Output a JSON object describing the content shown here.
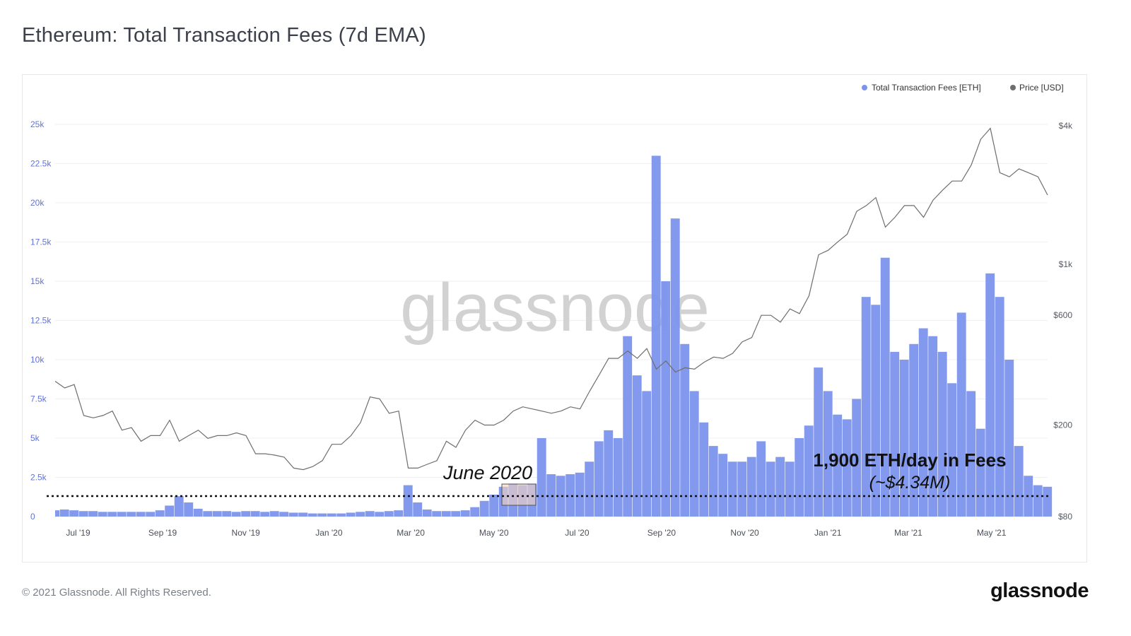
{
  "title": "Ethereum: Total Transaction Fees (7d EMA)",
  "footer": {
    "copyright": "© 2021 Glassnode. All Rights Reserved.",
    "logo": "glassnode"
  },
  "watermark": "glassnode",
  "colors": {
    "fees": "#7b93ec",
    "price": "#6e6e6e",
    "highlight": "#f9d6c2",
    "annotation": "#111111"
  },
  "chart_data": {
    "type": "bar",
    "title": "Ethereum: Total Transaction Fees (7d EMA)",
    "legend": {
      "position": "top-right",
      "entries": [
        "Total Transaction Fees [ETH]",
        "Price [USD]"
      ]
    },
    "grid": true,
    "x_start": "2019-06-24",
    "x_interval": "weekly",
    "x_ticks": [
      "Jul '19",
      "Sep '19",
      "Nov '19",
      "Jan '20",
      "Mar '20",
      "May '20",
      "Jul '20",
      "Sep '20",
      "Nov '20",
      "Jan '21",
      "Mar '21",
      "May '21"
    ],
    "y_left": {
      "ylim": [
        0,
        25000
      ],
      "scale": "linear",
      "ticks": [
        "0",
        "2.5k",
        "5k",
        "7.5k",
        "10k",
        "12.5k",
        "15k",
        "17.5k",
        "20k",
        "22.5k",
        "25k"
      ]
    },
    "y_right": {
      "ylim": [
        80,
        4000
      ],
      "scale": "log",
      "ticks": [
        {
          "label": "$80",
          "value": 80
        },
        {
          "label": "$200",
          "value": 200
        },
        {
          "label": "$600",
          "value": 600
        },
        {
          "label": "$1k",
          "value": 1000
        },
        {
          "label": "$4k",
          "value": 4000
        }
      ]
    },
    "series": [
      {
        "name": "Total Transaction Fees [ETH]",
        "type": "bar",
        "axis": "left",
        "values": [
          400,
          450,
          400,
          350,
          350,
          300,
          300,
          300,
          300,
          300,
          300,
          400,
          700,
          1300,
          900,
          500,
          350,
          350,
          350,
          300,
          350,
          350,
          300,
          350,
          300,
          250,
          250,
          200,
          200,
          200,
          200,
          250,
          300,
          350,
          300,
          350,
          400,
          2000,
          900,
          450,
          350,
          350,
          350,
          400,
          600,
          1000,
          1400,
          1900,
          2100,
          2000,
          2100,
          5000,
          2700,
          2600,
          2700,
          2800,
          3500,
          4800,
          5500,
          5000,
          11500,
          9000,
          8000,
          23000,
          15000,
          19000,
          11000,
          8000,
          6000,
          4500,
          4000,
          3500,
          3500,
          3800,
          4800,
          3500,
          3800,
          3500,
          5000,
          5800,
          9500,
          8000,
          6500,
          6200,
          7500,
          14000,
          13500,
          16500,
          10500,
          10000,
          11000,
          12000,
          11500,
          10500,
          8500,
          13000,
          8000,
          5600,
          15500,
          14000,
          10000,
          4500,
          2600,
          2000,
          1900
        ]
      },
      {
        "name": "Price [USD]",
        "type": "line",
        "axis": "right",
        "values": [
          310,
          290,
          300,
          220,
          215,
          220,
          230,
          190,
          195,
          170,
          180,
          180,
          210,
          170,
          180,
          190,
          175,
          180,
          180,
          185,
          180,
          150,
          150,
          148,
          145,
          130,
          128,
          132,
          140,
          165,
          165,
          180,
          205,
          265,
          260,
          225,
          230,
          130,
          130,
          135,
          140,
          170,
          160,
          190,
          210,
          200,
          200,
          210,
          230,
          240,
          235,
          230,
          225,
          230,
          240,
          235,
          280,
          330,
          390,
          390,
          420,
          390,
          430,
          350,
          380,
          340,
          355,
          350,
          375,
          395,
          390,
          410,
          460,
          480,
          600,
          600,
          560,
          640,
          610,
          730,
          1100,
          1150,
          1250,
          1350,
          1700,
          1800,
          1950,
          1450,
          1600,
          1800,
          1800,
          1600,
          1900,
          2100,
          2300,
          2300,
          2700,
          3500,
          3900,
          2500,
          2400,
          2600,
          2500,
          2400,
          2000
        ]
      }
    ],
    "annotations": {
      "highlight_label": "June 2020",
      "reference_line_label": "1,900 ETH/day in Fees",
      "reference_line_sublabel": "(~$4.34M)"
    }
  }
}
